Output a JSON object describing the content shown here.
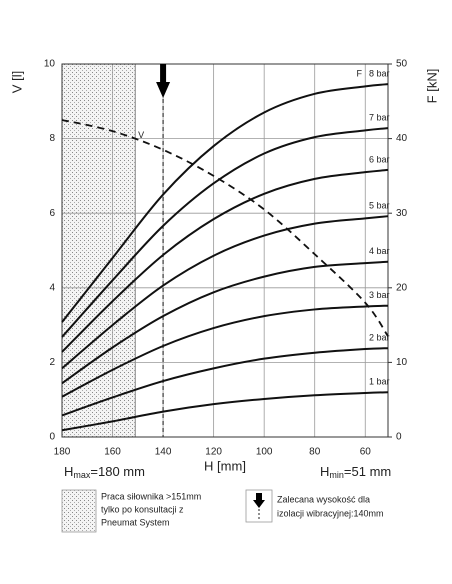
{
  "chart_data": {
    "type": "line",
    "x_label": "H [mm]",
    "y_label": "V [l]",
    "y2_label": "F [kN]",
    "x": [
      180,
      160,
      140,
      120,
      100,
      80,
      60,
      51
    ],
    "xlim": [
      180,
      51
    ],
    "xticks": [
      180,
      160,
      140,
      120,
      100,
      80,
      60
    ],
    "ylim": [
      0,
      10
    ],
    "yticks": [
      0,
      2,
      4,
      6,
      8,
      10
    ],
    "y2lim": [
      0,
      50
    ],
    "y2ticks": [
      0,
      10,
      20,
      30,
      40,
      50
    ],
    "grid": true,
    "series": [
      {
        "name": "1 bar",
        "color": "#111111",
        "axis": "y2",
        "values": [
          0.9,
          2.1,
          3.4,
          4.4,
          5.1,
          5.6,
          5.9,
          6.0
        ]
      },
      {
        "name": "2 bar",
        "color": "#111111",
        "axis": "y2",
        "values": [
          2.9,
          5.3,
          7.5,
          9.2,
          10.5,
          11.3,
          11.8,
          11.9
        ]
      },
      {
        "name": "3 bar",
        "color": "#111111",
        "axis": "y2",
        "values": [
          5.4,
          9.0,
          12.2,
          14.6,
          16.2,
          17.1,
          17.5,
          17.6
        ]
      },
      {
        "name": "4 bar",
        "color": "#111111",
        "axis": "y2",
        "values": [
          7.2,
          12.0,
          16.2,
          19.4,
          21.5,
          22.8,
          23.3,
          23.5
        ]
      },
      {
        "name": "5 bar",
        "color": "#111111",
        "axis": "y2",
        "values": [
          9.2,
          15.0,
          20.3,
          24.3,
          27.0,
          28.6,
          29.3,
          29.6
        ]
      },
      {
        "name": "6 bar",
        "color": "#111111",
        "axis": "y2",
        "values": [
          11.4,
          18.2,
          24.4,
          29.2,
          32.6,
          34.6,
          35.5,
          35.8
        ]
      },
      {
        "name": "7 bar",
        "color": "#111111",
        "axis": "y2",
        "values": [
          13.4,
          21.0,
          28.3,
          34.0,
          38.0,
          40.2,
          41.1,
          41.4
        ]
      },
      {
        "name": "8 bar",
        "color": "#111111",
        "axis": "y2",
        "values": [
          15.4,
          24.0,
          32.5,
          39.0,
          43.5,
          46.0,
          47.0,
          47.3
        ]
      },
      {
        "name": "V",
        "color": "#111111",
        "axis": "y",
        "dashed": true,
        "values": [
          8.5,
          8.2,
          7.7,
          7.0,
          6.1,
          4.9,
          3.6,
          2.7
        ]
      }
    ],
    "force_marker": "F",
    "shaded_region": [
      180,
      151
    ],
    "recommended_h": 140,
    "h_max_label": {
      "main": "H",
      "sub": "max",
      "rest": "=180 mm"
    },
    "h_min_label": {
      "main": "H",
      "sub": "min",
      "rest": "=51 mm"
    },
    "legend_shaded": [
      "Praca siłownika >151mm",
      "tylko po konsultacji z",
      "Pneumat System"
    ],
    "legend_arrow": [
      "Zalecana wysokość dla",
      "izolacji wibracyjnej:140mm"
    ]
  }
}
